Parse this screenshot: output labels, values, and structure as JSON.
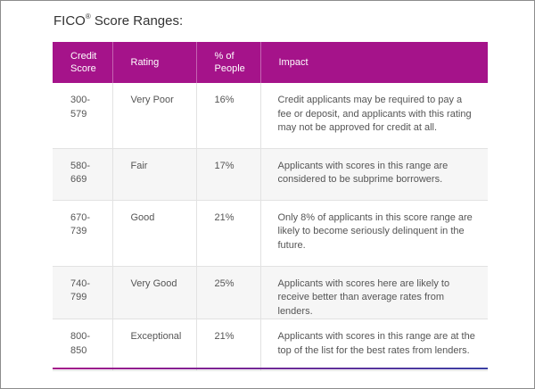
{
  "title": {
    "text": "FICO",
    "reg": "®",
    "rest": " Score Ranges:"
  },
  "table": {
    "headers": [
      "Credit Score",
      "Rating",
      "% of People",
      "Impact"
    ],
    "rows": [
      {
        "score": "300-579",
        "rating": "Very Poor",
        "percent": "16%",
        "impact": "Credit applicants may be required to pay a fee or deposit, and applicants with this rating may not be approved for credit at all."
      },
      {
        "score": "580-669",
        "rating": "Fair",
        "percent": "17%",
        "impact": "Applicants with scores in this range are considered to be subprime borrowers."
      },
      {
        "score": "670-739",
        "rating": "Good",
        "percent": "21%",
        "impact": "Only 8% of applicants in this score range are likely to become seriously delinquent in the future."
      },
      {
        "score": "740-799",
        "rating": "Very Good",
        "percent": "25%",
        "impact": "Applicants with scores here are likely to receive better than average rates from lenders."
      },
      {
        "score": "800-850",
        "rating": "Exceptional",
        "percent": "21%",
        "impact": "Applicants with scores in this range are at the top of the list for the best rates from lenders."
      }
    ]
  },
  "colors": {
    "header_bg": "#a5138a",
    "accent_gradient_start": "#a5138a",
    "accent_gradient_end": "#3a3fa3",
    "alt_row_bg": "#f6f6f6"
  }
}
